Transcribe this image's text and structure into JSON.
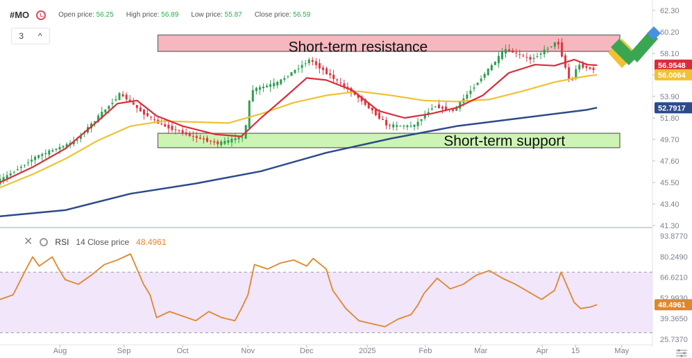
{
  "header": {
    "symbol": "#MO",
    "open_label": "Open price:",
    "open_value": "56.25",
    "high_label": "High price:",
    "high_value": "56.89",
    "low_label": "Low price:",
    "low_value": "55.87",
    "close_label": "Close price:",
    "close_value": "56.59",
    "interval_value": "3"
  },
  "rsi_header": {
    "label": "RSI",
    "params": "14 Close price",
    "value": "48.4961"
  },
  "colors": {
    "up": "#2e9e4f",
    "down": "#e0353f",
    "ema_fast": "#d92c3a",
    "ema_mid": "#f0c232",
    "ema_slow": "#2d4a8a",
    "rsi": "#e0862b",
    "resistance_zone": "#f6b8be",
    "support_zone": "#cdf4b4",
    "rsi_band": "#f1e6fa"
  },
  "chart_data": [
    {
      "type": "candlestick",
      "title": "#MO",
      "y_ticks": [
        "62.30",
        "60.20",
        "58.10",
        "56.00",
        "53.90",
        "51.80",
        "49.70",
        "47.60",
        "45.50",
        "43.40",
        "41.30"
      ],
      "ylim": [
        41.3,
        62.3
      ],
      "x_ticks": [
        "Aug",
        "Sep",
        "Oct",
        "Nov",
        "Dec",
        "2025",
        "Feb",
        "Mar",
        "Apr",
        "15",
        "May"
      ],
      "price_tags": [
        {
          "value": "56.9548",
          "series": "ema_fast"
        },
        {
          "value": "56.0064",
          "series": "ema_mid"
        },
        {
          "value": "52.7917",
          "series": "ema_slow"
        }
      ],
      "zones": [
        {
          "label": "Short-term resistance",
          "y_low": 58.3,
          "y_high": 59.9,
          "color": "resistance_zone"
        },
        {
          "label": "Short-term support",
          "y_low": 48.9,
          "y_high": 50.3,
          "color": "support_zone"
        }
      ],
      "price_path": [
        [
          0,
          45.5
        ],
        [
          0.06,
          48.0
        ],
        [
          0.12,
          49.5
        ],
        [
          0.19,
          54.2
        ],
        [
          0.22,
          52.5
        ],
        [
          0.25,
          51.2
        ],
        [
          0.3,
          50.0
        ],
        [
          0.34,
          49.3
        ],
        [
          0.38,
          50.0
        ],
        [
          0.39,
          54.5
        ],
        [
          0.43,
          55.2
        ],
        [
          0.48,
          57.5
        ],
        [
          0.52,
          55.5
        ],
        [
          0.56,
          53.5
        ],
        [
          0.6,
          51.0
        ],
        [
          0.64,
          51.0
        ],
        [
          0.67,
          53.0
        ],
        [
          0.7,
          52.5
        ],
        [
          0.74,
          55.5
        ],
        [
          0.78,
          58.5
        ],
        [
          0.82,
          57.5
        ],
        [
          0.86,
          59.3
        ],
        [
          0.88,
          55.0
        ],
        [
          0.89,
          57.0
        ],
        [
          0.91,
          56.6
        ]
      ],
      "ema_fast": [
        [
          0,
          45.5
        ],
        [
          0.05,
          47.0
        ],
        [
          0.1,
          48.8
        ],
        [
          0.15,
          51.5
        ],
        [
          0.18,
          53.2
        ],
        [
          0.21,
          53.5
        ],
        [
          0.24,
          52.0
        ],
        [
          0.28,
          51.0
        ],
        [
          0.33,
          50.2
        ],
        [
          0.37,
          50.0
        ],
        [
          0.4,
          51.8
        ],
        [
          0.44,
          54.0
        ],
        [
          0.47,
          55.7
        ],
        [
          0.5,
          55.5
        ],
        [
          0.54,
          54.5
        ],
        [
          0.58,
          52.5
        ],
        [
          0.62,
          51.8
        ],
        [
          0.66,
          52.2
        ],
        [
          0.7,
          52.8
        ],
        [
          0.74,
          54.0
        ],
        [
          0.78,
          56.2
        ],
        [
          0.82,
          57.0
        ],
        [
          0.85,
          56.9
        ],
        [
          0.88,
          57.5
        ],
        [
          0.9,
          57.0
        ],
        [
          0.915,
          56.95
        ]
      ],
      "ema_mid": [
        [
          0,
          45.0
        ],
        [
          0.05,
          46.3
        ],
        [
          0.1,
          47.8
        ],
        [
          0.15,
          49.6
        ],
        [
          0.2,
          51.0
        ],
        [
          0.25,
          51.5
        ],
        [
          0.3,
          51.4
        ],
        [
          0.35,
          51.3
        ],
        [
          0.4,
          52.2
        ],
        [
          0.45,
          53.3
        ],
        [
          0.5,
          54.0
        ],
        [
          0.55,
          54.4
        ],
        [
          0.6,
          54.0
        ],
        [
          0.65,
          53.5
        ],
        [
          0.7,
          53.4
        ],
        [
          0.75,
          53.6
        ],
        [
          0.8,
          54.4
        ],
        [
          0.85,
          55.3
        ],
        [
          0.9,
          55.9
        ],
        [
          0.915,
          56.0
        ]
      ],
      "ema_slow": [
        [
          0,
          42.2
        ],
        [
          0.1,
          42.8
        ],
        [
          0.2,
          44.4
        ],
        [
          0.3,
          45.4
        ],
        [
          0.4,
          46.6
        ],
        [
          0.5,
          48.4
        ],
        [
          0.6,
          49.8
        ],
        [
          0.7,
          51.0
        ],
        [
          0.8,
          51.8
        ],
        [
          0.9,
          52.6
        ],
        [
          0.915,
          52.8
        ]
      ]
    },
    {
      "type": "line",
      "title": "RSI",
      "y_ticks": [
        "93.8770",
        "80.2490",
        "66.6210",
        "52.9930",
        "39.3650",
        "25.7370"
      ],
      "ylim": [
        25.737,
        93.877
      ],
      "band": [
        30,
        70
      ],
      "current_value": "48.4961",
      "rsi_path": [
        [
          0,
          52
        ],
        [
          0.02,
          55
        ],
        [
          0.04,
          72
        ],
        [
          0.05,
          80
        ],
        [
          0.06,
          74
        ],
        [
          0.08,
          80
        ],
        [
          0.09,
          72
        ],
        [
          0.1,
          65
        ],
        [
          0.12,
          62
        ],
        [
          0.14,
          68
        ],
        [
          0.16,
          75
        ],
        [
          0.18,
          78
        ],
        [
          0.2,
          82
        ],
        [
          0.21,
          72
        ],
        [
          0.22,
          62
        ],
        [
          0.23,
          55
        ],
        [
          0.24,
          40
        ],
        [
          0.26,
          44
        ],
        [
          0.28,
          41
        ],
        [
          0.3,
          38
        ],
        [
          0.32,
          44
        ],
        [
          0.34,
          40
        ],
        [
          0.36,
          38
        ],
        [
          0.37,
          46
        ],
        [
          0.38,
          55
        ],
        [
          0.39,
          75
        ],
        [
          0.41,
          72
        ],
        [
          0.43,
          76
        ],
        [
          0.45,
          78
        ],
        [
          0.47,
          74
        ],
        [
          0.48,
          79
        ],
        [
          0.5,
          72
        ],
        [
          0.51,
          58
        ],
        [
          0.53,
          46
        ],
        [
          0.55,
          38
        ],
        [
          0.57,
          36
        ],
        [
          0.59,
          34
        ],
        [
          0.61,
          39
        ],
        [
          0.63,
          42
        ],
        [
          0.64,
          48
        ],
        [
          0.65,
          56
        ],
        [
          0.67,
          66
        ],
        [
          0.69,
          59
        ],
        [
          0.71,
          62
        ],
        [
          0.73,
          68
        ],
        [
          0.75,
          71
        ],
        [
          0.77,
          66
        ],
        [
          0.79,
          62
        ],
        [
          0.81,
          57
        ],
        [
          0.83,
          52
        ],
        [
          0.85,
          58
        ],
        [
          0.86,
          70
        ],
        [
          0.87,
          60
        ],
        [
          0.88,
          50
        ],
        [
          0.89,
          46
        ],
        [
          0.905,
          47
        ],
        [
          0.915,
          48.5
        ]
      ]
    }
  ]
}
